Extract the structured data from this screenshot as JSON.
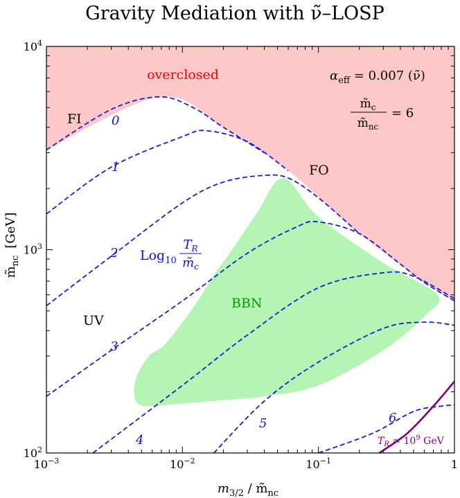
{
  "chart_data": {
    "type": "line",
    "title": "Gravity Mediation with ν̃–LOSP",
    "xlabel": {
      "main": "m",
      "sub": "3/2",
      "sep": " / ",
      "tilde": "m̃",
      "tsub": "nc"
    },
    "ylabel": {
      "main": "m̃",
      "sub": "nc",
      "unit": "[GeV]"
    },
    "x_scale": "log",
    "y_scale": "log",
    "xlim": [
      0.001,
      1
    ],
    "ylim": [
      100,
      10000
    ],
    "x_ticks": [
      {
        "value": 0.001,
        "base": "10",
        "exp": "−3"
      },
      {
        "value": 0.01,
        "base": "10",
        "exp": "−2"
      },
      {
        "value": 0.1,
        "base": "10",
        "exp": "−1"
      },
      {
        "value": 1,
        "base": "1",
        "exp": ""
      }
    ],
    "y_ticks": [
      {
        "value": 100,
        "base": "10",
        "exp": "2"
      },
      {
        "value": 1000,
        "base": "10",
        "exp": "3"
      },
      {
        "value": 10000,
        "base": "10",
        "exp": "4"
      }
    ],
    "colors": {
      "overclosed": "#ffc8c8",
      "bbn": "#b4f5b4",
      "contour": "#1a1ae6",
      "tr_line": "#800080",
      "overclosed_text": "#ff0000",
      "bbn_text": "#00a000"
    },
    "overclosed_boundary": [
      [
        0.001,
        3100
      ],
      [
        0.0068,
        5650
      ],
      [
        0.02,
        4000
      ],
      [
        0.06,
        2450
      ],
      [
        0.2,
        1200
      ],
      [
        0.6,
        690
      ],
      [
        1,
        560
      ]
    ],
    "bbn_region": [
      [
        0.055,
        2250
      ],
      [
        0.1,
        1450
      ],
      [
        0.3,
        860
      ],
      [
        0.75,
        600
      ],
      [
        0.6,
        470
      ],
      [
        0.3,
        320
      ],
      [
        0.1,
        215
      ],
      [
        0.04,
        190
      ],
      [
        0.02,
        182
      ],
      [
        0.01,
        175
      ],
      [
        0.0055,
        170
      ],
      [
        0.0045,
        182
      ],
      [
        0.0045,
        225
      ],
      [
        0.005,
        265
      ],
      [
        0.0058,
        305
      ],
      [
        0.0075,
        345
      ],
      [
        0.012,
        520
      ],
      [
        0.017,
        750
      ],
      [
        0.022,
        950
      ],
      [
        0.035,
        1500
      ]
    ],
    "series": [
      {
        "name": "0",
        "values": [
          [
            0.001,
            3100
          ],
          [
            0.003,
            4900
          ],
          [
            0.0068,
            5650
          ],
          [
            0.012,
            5000
          ],
          [
            0.02,
            4000
          ],
          [
            0.04,
            3000
          ]
        ]
      },
      {
        "name": "1",
        "values": [
          [
            0.001,
            1500
          ],
          [
            0.003,
            2550
          ],
          [
            0.01,
            3600
          ],
          [
            0.015,
            3850
          ],
          [
            0.03,
            3400
          ],
          [
            0.06,
            2450
          ]
        ]
      },
      {
        "name": "2",
        "values": [
          [
            0.001,
            530
          ],
          [
            0.003,
            930
          ],
          [
            0.01,
            1700
          ],
          [
            0.02,
            2150
          ],
          [
            0.04,
            2320
          ],
          [
            0.06,
            2250
          ],
          [
            0.1,
            1800
          ],
          [
            0.2,
            1200
          ]
        ]
      },
      {
        "name": "3",
        "values": [
          [
            0.001,
            190
          ],
          [
            0.003,
            320
          ],
          [
            0.01,
            560
          ],
          [
            0.03,
            960
          ],
          [
            0.07,
            1300
          ],
          [
            0.1,
            1370
          ],
          [
            0.2,
            1200
          ],
          [
            0.4,
            850
          ],
          [
            0.6,
            690
          ],
          [
            1,
            560
          ]
        ]
      },
      {
        "name": "4",
        "values": [
          [
            0.0022,
            100
          ],
          [
            0.01,
            215
          ],
          [
            0.03,
            380
          ],
          [
            0.1,
            650
          ],
          [
            0.3,
            770
          ],
          [
            0.5,
            740
          ],
          [
            1,
            575
          ]
        ]
      },
      {
        "name": "5",
        "values": [
          [
            0.017,
            100
          ],
          [
            0.04,
            180
          ],
          [
            0.1,
            280
          ],
          [
            0.3,
            410
          ],
          [
            0.6,
            440
          ],
          [
            1,
            425
          ]
        ]
      },
      {
        "name": "6",
        "values": [
          [
            0.1,
            100
          ],
          [
            0.25,
            125
          ],
          [
            0.5,
            160
          ],
          [
            0.8,
            170
          ],
          [
            1,
            172
          ]
        ]
      },
      {
        "name": "T_R = 10^9 GeV",
        "values": [
          [
            0.28,
            100
          ],
          [
            0.45,
            125
          ],
          [
            0.7,
            170
          ],
          [
            1,
            225
          ]
        ]
      }
    ],
    "annotations": {
      "overclosed": "overclosed",
      "fi": "FI",
      "fo": "FO",
      "uv": "UV",
      "bbn": "BBN",
      "alpha_sym": "α",
      "alpha_sub": "eff",
      "alpha_rest": " = 0.007 (ν̃)",
      "ratio_num_base": "m̃",
      "ratio_num_sub": "c",
      "ratio_den_base": "m̃",
      "ratio_den_sub": "nc",
      "ratio_val": "= 6",
      "log_base": "Log",
      "log_sub": "10",
      "log_num_base": "T",
      "log_num_sub": "R",
      "log_den_base": "m̃",
      "log_den_sub": "c",
      "tr_T": "T",
      "tr_sub": "R",
      "tr_eq": " = 10",
      "tr_exp": "9",
      "tr_unit": " GeV"
    },
    "contour_labels": [
      "0",
      "1",
      "2",
      "3",
      "4",
      "5",
      "6"
    ]
  }
}
